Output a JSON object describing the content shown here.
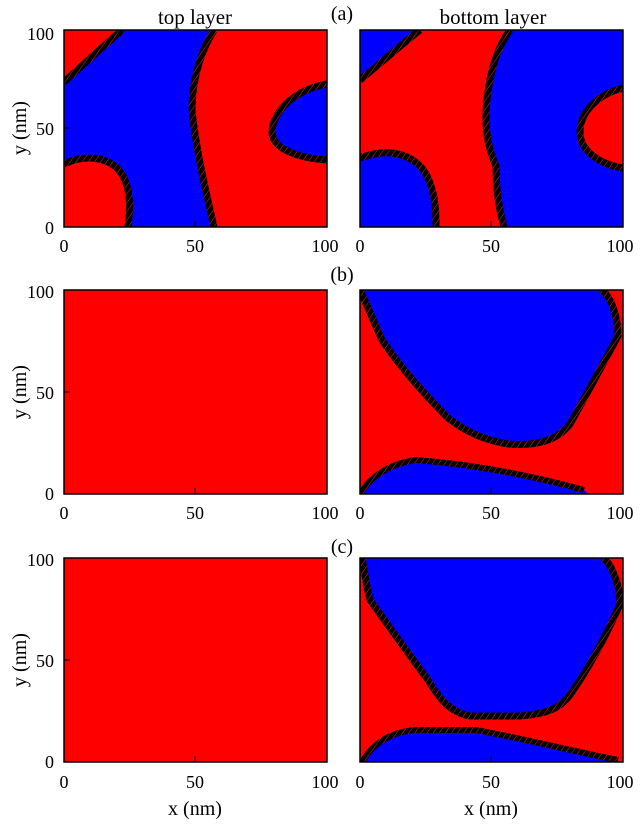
{
  "figure": {
    "column_titles": [
      "top layer",
      "bottom layer"
    ],
    "row_labels": [
      "(a)",
      "(b)",
      "(c)"
    ],
    "x_axis_label": "x (nm)",
    "y_axis_label": "y (nm)",
    "x_ticks": [
      "0",
      "50",
      "100"
    ],
    "y_ticks": [
      "0",
      "50",
      "100"
    ]
  },
  "colors": {
    "domain_red": "#ff0000",
    "domain_blue": "#0000ff",
    "wall": "#000000"
  },
  "chart_data": [
    {
      "type": "heatmap",
      "panel": "a-top",
      "row": "(a)",
      "layer": "top layer",
      "xlim": [
        0,
        100
      ],
      "ylim": [
        0,
        100
      ],
      "regions": [
        "red",
        "blue"
      ]
    },
    {
      "type": "heatmap",
      "panel": "a-bottom",
      "row": "(a)",
      "layer": "bottom layer",
      "xlim": [
        0,
        100
      ],
      "ylim": [
        0,
        100
      ],
      "regions": [
        "red",
        "blue"
      ]
    },
    {
      "type": "heatmap",
      "panel": "b-top",
      "row": "(b)",
      "layer": "top layer",
      "xlim": [
        0,
        100
      ],
      "ylim": [
        0,
        100
      ],
      "regions": [
        "red"
      ]
    },
    {
      "type": "heatmap",
      "panel": "b-bottom",
      "row": "(b)",
      "layer": "bottom layer",
      "xlim": [
        0,
        100
      ],
      "ylim": [
        0,
        100
      ],
      "regions": [
        "red",
        "blue"
      ]
    },
    {
      "type": "heatmap",
      "panel": "c-top",
      "row": "(c)",
      "layer": "top layer",
      "xlim": [
        0,
        100
      ],
      "ylim": [
        0,
        100
      ],
      "regions": [
        "red"
      ]
    },
    {
      "type": "heatmap",
      "panel": "c-bottom",
      "row": "(c)",
      "layer": "bottom layer",
      "xlim": [
        0,
        100
      ],
      "ylim": [
        0,
        100
      ],
      "regions": [
        "red",
        "blue"
      ]
    }
  ]
}
